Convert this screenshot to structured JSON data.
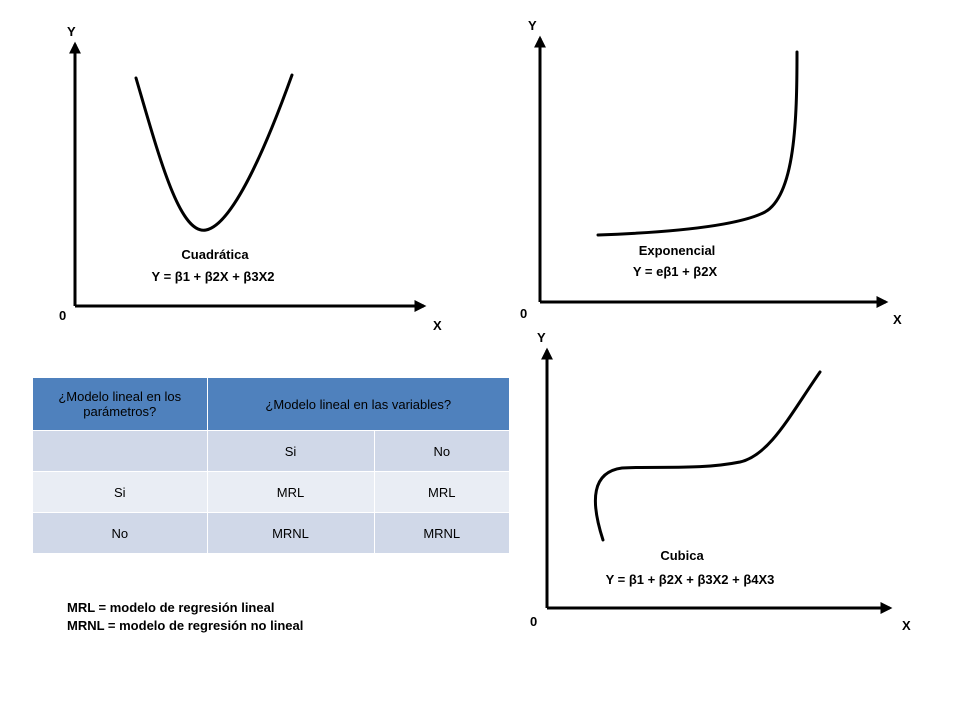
{
  "graphs": {
    "quadratic": {
      "y_axis_label": "Y",
      "x_axis_label": "X",
      "origin_label": "0",
      "name": "Cuadrática",
      "equation": "Y = β1 + β2X + β3X2"
    },
    "exponential": {
      "y_axis_label": "Y",
      "x_axis_label": "X",
      "origin_label": "0",
      "name": "Exponencial",
      "equation": "Y = eβ1 + β2X"
    },
    "cubic": {
      "y_axis_label": "Y",
      "x_axis_label": "X",
      "origin_label": "0",
      "name": "Cubica",
      "equation": "Y = β1 + β2X + β3X2 + β4X3"
    }
  },
  "table": {
    "header": [
      "¿Modelo lineal en los parámetros?",
      "¿Modelo lineal en las variables?"
    ],
    "rows": [
      [
        "",
        "Si",
        "No"
      ],
      [
        "Si",
        "MRL",
        "MRL"
      ],
      [
        "No",
        "MRNL",
        "MRNL"
      ]
    ]
  },
  "legend": {
    "line1": "MRL = modelo de regresión lineal",
    "line2": "MRNL = modelo de regresión no lineal"
  }
}
